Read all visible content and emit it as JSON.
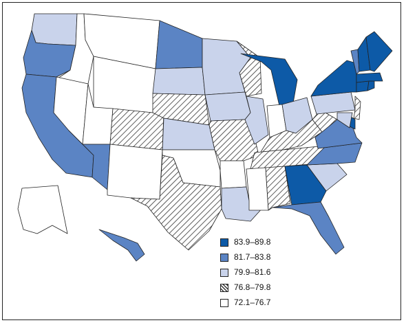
{
  "legend": [
    {
      "label": "83.9–89.8",
      "fill": "#0d5aa7"
    },
    {
      "label": "81.7–83.8",
      "fill": "#5b84c4"
    },
    {
      "label": "79.9–81.6",
      "fill": "#c9d3eb"
    },
    {
      "label": "76.8–79.8",
      "fill": "hatch"
    },
    {
      "label": "72.1–76.7",
      "fill": "#ffffff"
    }
  ],
  "states": [
    {
      "name": "WA",
      "cls": 2
    },
    {
      "name": "OR",
      "cls": 1
    },
    {
      "name": "CA",
      "cls": 1
    },
    {
      "name": "ID",
      "cls": 4
    },
    {
      "name": "NV",
      "cls": 4
    },
    {
      "name": "MT",
      "cls": 4
    },
    {
      "name": "WY",
      "cls": 4
    },
    {
      "name": "UT",
      "cls": 4
    },
    {
      "name": "AZ",
      "cls": 1
    },
    {
      "name": "CO",
      "cls": 3
    },
    {
      "name": "NM",
      "cls": 4
    },
    {
      "name": "ND",
      "cls": 1
    },
    {
      "name": "SD",
      "cls": 2
    },
    {
      "name": "NE",
      "cls": 3
    },
    {
      "name": "KS",
      "cls": 2
    },
    {
      "name": "OK",
      "cls": 4
    },
    {
      "name": "TX",
      "cls": 3
    },
    {
      "name": "MN",
      "cls": 2
    },
    {
      "name": "IA",
      "cls": 2
    },
    {
      "name": "MO",
      "cls": 3
    },
    {
      "name": "AR",
      "cls": 4
    },
    {
      "name": "LA",
      "cls": 2
    },
    {
      "name": "WI",
      "cls": 3
    },
    {
      "name": "IL",
      "cls": 2
    },
    {
      "name": "MI",
      "cls": 0
    },
    {
      "name": "IN",
      "cls": 4
    },
    {
      "name": "OH",
      "cls": 2
    },
    {
      "name": "KY",
      "cls": 3
    },
    {
      "name": "TN",
      "cls": 3
    },
    {
      "name": "MS",
      "cls": 4
    },
    {
      "name": "AL",
      "cls": 3
    },
    {
      "name": "GA",
      "cls": 0
    },
    {
      "name": "FL",
      "cls": 1
    },
    {
      "name": "SC",
      "cls": 2
    },
    {
      "name": "NC",
      "cls": 1
    },
    {
      "name": "VA",
      "cls": 1
    },
    {
      "name": "WV",
      "cls": 3
    },
    {
      "name": "PA",
      "cls": 2
    },
    {
      "name": "NY",
      "cls": 0
    },
    {
      "name": "NJ",
      "cls": 3
    },
    {
      "name": "DE",
      "cls": 0
    },
    {
      "name": "MD",
      "cls": 2
    },
    {
      "name": "CT",
      "cls": 0
    },
    {
      "name": "RI",
      "cls": 0
    },
    {
      "name": "MA",
      "cls": 0
    },
    {
      "name": "VT",
      "cls": 1
    },
    {
      "name": "NH",
      "cls": 0
    },
    {
      "name": "ME",
      "cls": 0
    },
    {
      "name": "AK",
      "cls": 4
    },
    {
      "name": "HI",
      "cls": 1
    }
  ]
}
